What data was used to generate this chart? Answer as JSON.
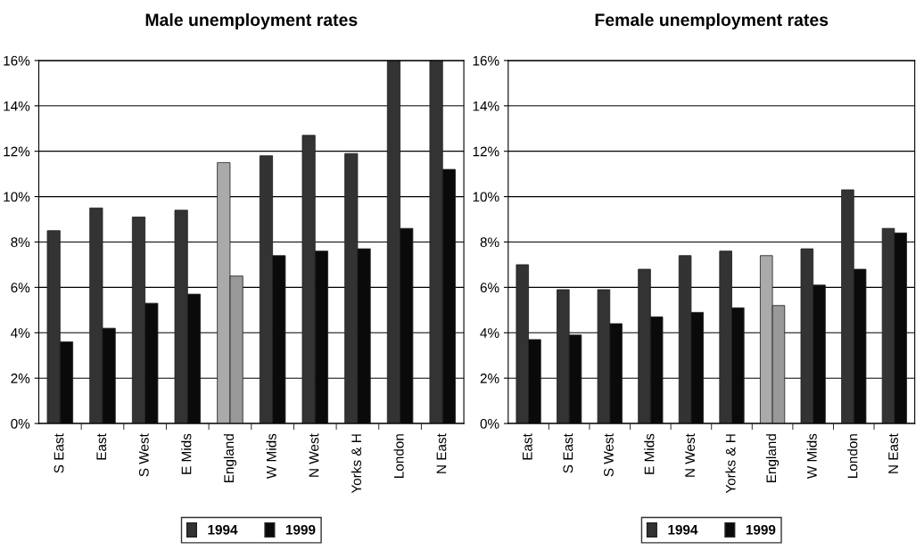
{
  "chart_data": [
    {
      "type": "bar",
      "title": "Male unemployment rates",
      "categories": [
        "S East",
        "East",
        "S West",
        "E Mids",
        "England",
        "W Mids",
        "N West",
        "Yorks & H",
        "London",
        "N East"
      ],
      "series": [
        {
          "name": "1994",
          "color": "#333333",
          "colors": [
            "#333333",
            "#333333",
            "#333333",
            "#333333",
            "#aaaaaa",
            "#333333",
            "#333333",
            "#333333",
            "#333333",
            "#333333"
          ],
          "values": [
            8.5,
            9.5,
            9.1,
            9.4,
            11.5,
            11.8,
            12.7,
            11.9,
            16,
            16
          ]
        },
        {
          "name": "1999",
          "color": "#0a0a0a",
          "colors": [
            "#0a0a0a",
            "#0a0a0a",
            "#0a0a0a",
            "#0a0a0a",
            "#999999",
            "#0a0a0a",
            "#0a0a0a",
            "#0a0a0a",
            "#0a0a0a",
            "#0a0a0a"
          ],
          "values": [
            3.6,
            4.2,
            5.3,
            5.7,
            6.5,
            7.4,
            7.6,
            7.7,
            8.6,
            11.2
          ]
        }
      ],
      "ylim": [
        0,
        16
      ],
      "yticks": [
        {
          "value": 0,
          "label": "0%"
        },
        {
          "value": 2,
          "label": "2%"
        },
        {
          "value": 4,
          "label": "4%"
        },
        {
          "value": 6,
          "label": "6%"
        },
        {
          "value": 8,
          "label": "8%"
        },
        {
          "value": 10,
          "label": "10%"
        },
        {
          "value": 12,
          "label": "12%"
        },
        {
          "value": 14,
          "label": "14%"
        },
        {
          "value": 16,
          "label": "16%"
        }
      ],
      "grid": "y",
      "legend": "bottom"
    },
    {
      "type": "bar",
      "title": "Female unemployment rates",
      "categories": [
        "East",
        "S East",
        "S West",
        "E Mids",
        "N West",
        "Yorks & H",
        "England",
        "W Mids",
        "London",
        "N East"
      ],
      "series": [
        {
          "name": "1994",
          "color": "#333333",
          "colors": [
            "#333333",
            "#333333",
            "#333333",
            "#333333",
            "#333333",
            "#333333",
            "#aaaaaa",
            "#333333",
            "#333333",
            "#333333"
          ],
          "values": [
            7.0,
            5.9,
            5.9,
            6.8,
            7.4,
            7.6,
            7.4,
            7.7,
            10.3,
            8.6
          ]
        },
        {
          "name": "1999",
          "color": "#0a0a0a",
          "colors": [
            "#0a0a0a",
            "#0a0a0a",
            "#0a0a0a",
            "#0a0a0a",
            "#0a0a0a",
            "#0a0a0a",
            "#999999",
            "#0a0a0a",
            "#0a0a0a",
            "#0a0a0a"
          ],
          "values": [
            3.7,
            3.9,
            4.4,
            4.7,
            4.9,
            5.1,
            5.2,
            6.1,
            6.8,
            8.4
          ]
        }
      ],
      "ylim": [
        0,
        16
      ],
      "yticks": [
        {
          "value": 0,
          "label": "0%"
        },
        {
          "value": 2,
          "label": "2%"
        },
        {
          "value": 4,
          "label": "4%"
        },
        {
          "value": 6,
          "label": "6%"
        },
        {
          "value": 8,
          "label": "8%"
        },
        {
          "value": 10,
          "label": "10%"
        },
        {
          "value": 12,
          "label": "12%"
        },
        {
          "value": 14,
          "label": "14%"
        },
        {
          "value": 16,
          "label": "16%"
        }
      ],
      "grid": "y",
      "legend": "bottom"
    }
  ]
}
